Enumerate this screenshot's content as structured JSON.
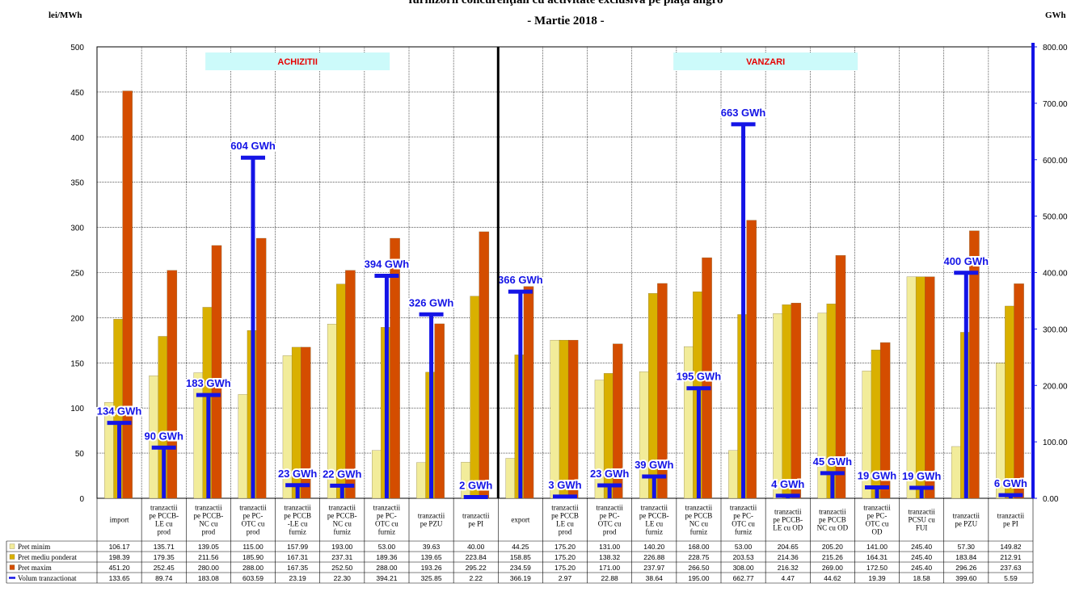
{
  "chart_data": {
    "type": "bar",
    "title_line1": "furnizorii concurenţiali cu activitate exclusivă pe piaţa angro",
    "title_line2": "- Martie 2018 -",
    "ylabel_left": "lei/MWh",
    "ylabel_right": "GWh",
    "ylim_left": [
      0,
      500
    ],
    "ylim_right": [
      0,
      800
    ],
    "yticks_left": [
      "0",
      "50",
      "100",
      "150",
      "200",
      "250",
      "300",
      "350",
      "400",
      "450",
      "500"
    ],
    "yticks_right": [
      "0.00",
      "100.00",
      "200.00",
      "300.00",
      "400.00",
      "500.00",
      "600.00",
      "700.00",
      "800.00"
    ],
    "grid": true,
    "sections": [
      "ACHIZITII",
      "VANZARI"
    ],
    "categories": [
      [
        "import"
      ],
      [
        "tranzactii",
        "pe PCCB-",
        "LE cu",
        "prod"
      ],
      [
        "tranzactii",
        "pe PCCB-",
        "NC cu",
        "prod"
      ],
      [
        "tranzactii",
        "pe PC-",
        "OTC cu",
        "prod"
      ],
      [
        "tranzactii",
        "pe PCCB",
        "-LE cu",
        "furniz"
      ],
      [
        "tranzactii",
        "pe PCCB-",
        "NC cu",
        "furniz"
      ],
      [
        "tranzactii",
        "pe PC-",
        "OTC cu",
        "furniz"
      ],
      [
        "tranzactii",
        "pe PZU"
      ],
      [
        "tranzactii",
        "pe PI"
      ],
      [
        "export"
      ],
      [
        "tranzactii",
        "pe PCCB",
        "LE cu",
        "prod"
      ],
      [
        "tranzactii",
        "pe PC-",
        "OTC cu",
        "prod"
      ],
      [
        "tranzactii",
        "pe PCCB-",
        "LE cu",
        "furniz"
      ],
      [
        "tranzactii",
        "pe PCCB",
        "NC cu",
        "furniz"
      ],
      [
        "tranzactii",
        "pe PC-",
        "OTC cu",
        "furniz"
      ],
      [
        "tranzactii",
        "pe PCCB-",
        "LE cu OD"
      ],
      [
        "tranzactii",
        "pe PCCB",
        "NC cu OD"
      ],
      [
        "tranzactii",
        "pe PC-",
        "OTC cu",
        "OD"
      ],
      [
        "tranzactii",
        "PCSU cu",
        "FUI"
      ],
      [
        "tranzactii",
        "pe PZU"
      ],
      [
        "tranzactii",
        "pe PI"
      ]
    ],
    "series": [
      {
        "name": "Pret minim",
        "color": "#f2ec9a",
        "axis": "left",
        "values": [
          106.17,
          135.71,
          139.05,
          115.0,
          157.99,
          193.0,
          53.0,
          39.63,
          40.0,
          44.25,
          175.2,
          131.0,
          140.2,
          168.0,
          53.0,
          204.65,
          205.2,
          141.0,
          245.4,
          57.3,
          149.82
        ],
        "labels": [
          "106.17",
          "135.71",
          "139.05",
          "115.00",
          "157.99",
          "193.00",
          "53.00",
          "39.63",
          "40.00",
          "44.25",
          "175.20",
          "131.00",
          "140.20",
          "168.00",
          "53.00",
          "204.65",
          "205.20",
          "141.00",
          "245.40",
          "57.30",
          "149.82"
        ]
      },
      {
        "name": "Pret mediu ponderat",
        "color": "#d9b000",
        "axis": "left",
        "values": [
          198.39,
          179.35,
          211.56,
          185.9,
          167.31,
          237.31,
          189.36,
          139.65,
          223.84,
          158.85,
          175.2,
          138.32,
          226.88,
          228.75,
          203.53,
          214.36,
          215.26,
          164.31,
          245.4,
          183.84,
          212.91
        ],
        "labels": [
          "198.39",
          "179.35",
          "211.56",
          "185.90",
          "167.31",
          "237.31",
          "189.36",
          "139.65",
          "223.84",
          "158.85",
          "175.20",
          "138.32",
          "226.88",
          "228.75",
          "203.53",
          "214.36",
          "215.26",
          "164.31",
          "245.40",
          "183.84",
          "212.91"
        ]
      },
      {
        "name": "Pret maxim",
        "color": "#d44d00",
        "axis": "left",
        "values": [
          451.2,
          252.45,
          280.0,
          288.0,
          167.35,
          252.5,
          288.0,
          193.26,
          295.22,
          234.59,
          175.2,
          171.0,
          237.97,
          266.5,
          308.0,
          216.32,
          269.0,
          172.5,
          245.4,
          296.26,
          237.63
        ],
        "labels": [
          "451.20",
          "252.45",
          "280.00",
          "288.00",
          "167.35",
          "252.50",
          "288.00",
          "193.26",
          "295.22",
          "234.59",
          "175.20",
          "171.00",
          "237.97",
          "266.50",
          "308.00",
          "216.32",
          "269.00",
          "172.50",
          "245.40",
          "296.26",
          "237.63"
        ]
      },
      {
        "name": "Volum tranzactionat",
        "color": "#1414e6",
        "axis": "right",
        "values": [
          133.65,
          89.74,
          183.08,
          603.59,
          23.19,
          22.3,
          394.21,
          325.85,
          2.22,
          366.19,
          2.97,
          22.88,
          38.64,
          195.0,
          662.77,
          4.47,
          44.62,
          19.39,
          18.58,
          399.6,
          5.59
        ],
        "labels": [
          "133.65",
          "89.74",
          "183.08",
          "603.59",
          "23.19",
          "22.30",
          "394.21",
          "325.85",
          "2.22",
          "366.19",
          "2.97",
          "22.88",
          "38.64",
          "195.00",
          "662.77",
          "4.47",
          "44.62",
          "19.39",
          "18.58",
          "399.60",
          "5.59"
        ],
        "point_labels": [
          "134 GWh",
          "90 GWh",
          "183 GWh",
          "604 GWh",
          "23 GWh",
          "22 GWh",
          "394 GWh",
          "326 GWh",
          "2 GWh",
          "366 GWh",
          "3 GWh",
          "23 GWh",
          "39 GWh",
          "195 GWh",
          "663 GWh",
          "4 GWh",
          "45 GWh",
          "19 GWh",
          "19 GWh",
          "400 GWh",
          "6 GWh"
        ]
      }
    ]
  }
}
